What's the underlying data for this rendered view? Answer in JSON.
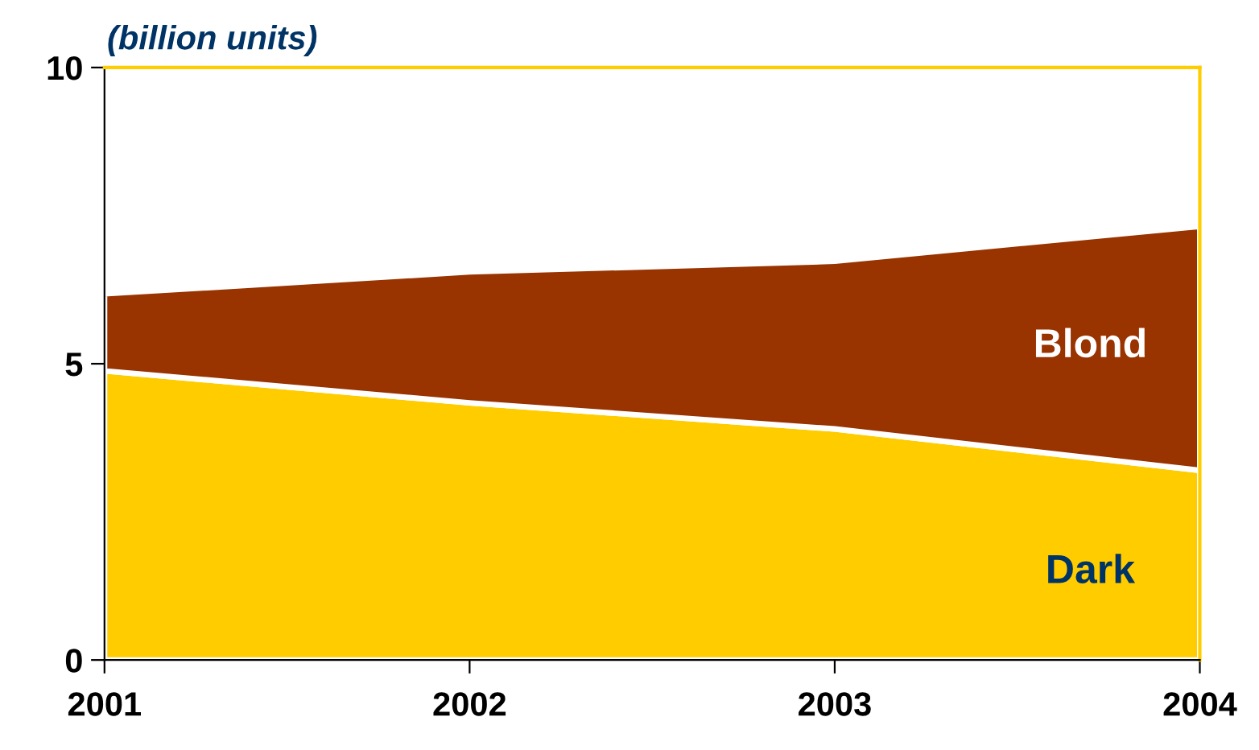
{
  "chart_data": {
    "type": "area",
    "stacked": true,
    "subtitle": "(billion units)",
    "categories": [
      "2001",
      "2002",
      "2003",
      "2004"
    ],
    "series": [
      {
        "name": "Dark",
        "color": "#ffcc00",
        "values": [
          4.88,
          4.34,
          3.9,
          3.2
        ]
      },
      {
        "name": "Blond",
        "color": "#993300",
        "values": [
          1.3,
          2.21,
          2.83,
          4.12
        ]
      }
    ],
    "ylim": [
      0,
      10
    ],
    "yticks": [
      0,
      5,
      10
    ],
    "grid": false,
    "legend": false
  }
}
